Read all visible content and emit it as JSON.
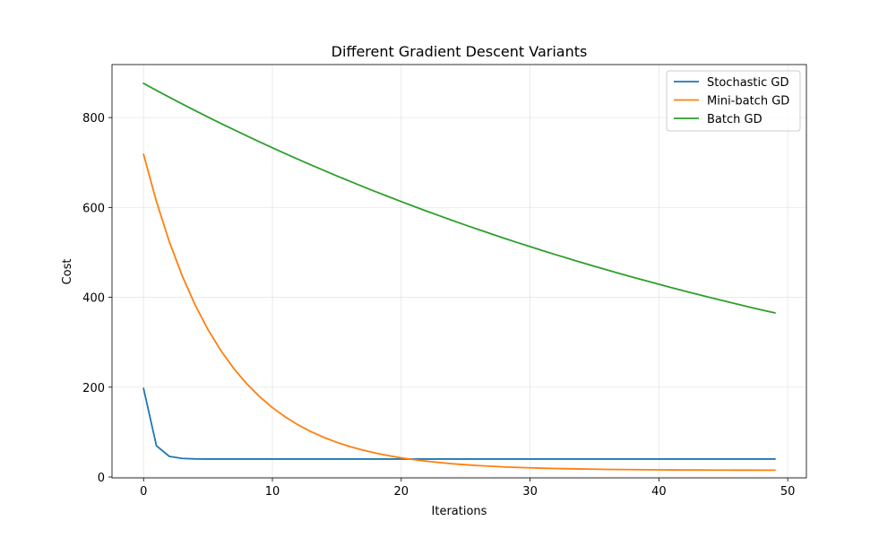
{
  "chart_data": {
    "type": "line",
    "title": "Different Gradient Descent Variants",
    "xlabel": "Iterations",
    "ylabel": "Cost",
    "xlim": [
      -2.45,
      51.45
    ],
    "ylim": [
      -2,
      918
    ],
    "xticks": [
      0,
      10,
      20,
      30,
      40,
      50
    ],
    "yticks": [
      0,
      200,
      400,
      600,
      800
    ],
    "grid": true,
    "legend_position": "top-right",
    "x": [
      0,
      1,
      2,
      3,
      4,
      5,
      6,
      7,
      8,
      9,
      10,
      11,
      12,
      13,
      14,
      15,
      16,
      17,
      18,
      19,
      20,
      21,
      22,
      23,
      24,
      25,
      26,
      27,
      28,
      29,
      30,
      31,
      32,
      33,
      34,
      35,
      36,
      37,
      38,
      39,
      40,
      41,
      42,
      43,
      44,
      45,
      46,
      47,
      48,
      49
    ],
    "series": [
      {
        "name": "Stochastic GD",
        "color": "#1f77b4",
        "values": [
          197.0,
          69.5,
          45.9,
          41.4,
          40.3,
          40.0,
          40.0,
          40.0,
          40.0,
          40.0,
          40.0,
          40.0,
          40.0,
          40.0,
          40.0,
          40.0,
          40.0,
          40.0,
          40.0,
          40.0,
          40.0,
          40.0,
          40.0,
          40.0,
          40.0,
          40.0,
          40.0,
          40.0,
          40.0,
          40.0,
          40.0,
          40.0,
          40.0,
          40.0,
          40.0,
          40.0,
          40.0,
          40.0,
          40.0,
          40.0,
          40.0,
          40.0,
          40.0,
          40.0,
          40.0,
          40.0,
          40.0,
          40.0,
          40.0,
          40.0
        ]
      },
      {
        "name": "Mini-batch GD",
        "color": "#ff7f0e",
        "values": [
          718.0,
          613.1,
          523.8,
          447.8,
          383.2,
          328.2,
          281.4,
          241.6,
          207.8,
          179.0,
          154.5,
          133.7,
          116.0,
          100.9,
          88.1,
          77.2,
          67.9,
          60.0,
          53.3,
          47.6,
          42.7,
          38.6,
          35.1,
          32.1,
          29.5,
          27.3,
          25.5,
          23.9,
          22.5,
          21.4,
          20.4,
          19.6,
          18.9,
          18.3,
          17.8,
          17.4,
          17.0,
          16.7,
          16.4,
          16.2,
          16.0,
          15.8,
          15.7,
          15.6,
          15.5,
          15.4,
          15.3,
          15.3,
          15.2,
          15.2
        ]
      },
      {
        "name": "Batch GD",
        "color": "#2ca02c",
        "values": [
          876.0,
          860.5,
          845.3,
          830.3,
          815.6,
          801.2,
          787.0,
          773.1,
          759.4,
          746.0,
          732.8,
          719.8,
          707.1,
          694.6,
          682.3,
          670.2,
          658.4,
          646.7,
          635.3,
          624.1,
          613.0,
          602.2,
          591.5,
          581.1,
          570.8,
          560.7,
          550.8,
          541.0,
          531.4,
          522.0,
          512.8,
          503.7,
          494.8,
          486.1,
          477.5,
          469.0,
          460.7,
          452.6,
          444.6,
          436.7,
          429.0,
          421.4,
          413.9,
          406.6,
          399.4,
          392.3,
          385.4,
          378.5,
          371.8,
          365.3
        ]
      }
    ]
  }
}
